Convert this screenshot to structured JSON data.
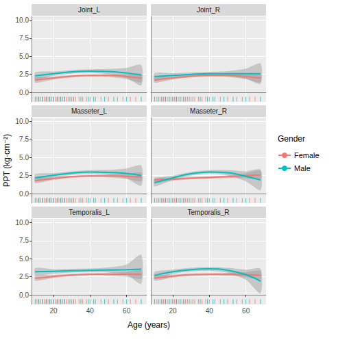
{
  "chart_data": {
    "type": "line",
    "x_label": "Age (years)",
    "y_label": "PPT (kg·cm⁻²)",
    "legend_title": "Gender",
    "legend": "right",
    "grid": true,
    "xlim": [
      8,
      71
    ],
    "ylim": [
      -1.3,
      10.5
    ],
    "xticks": [
      20,
      40,
      60
    ],
    "yticks": [
      {
        "value": 0,
        "label": "0.0"
      },
      2.5,
      {
        "value": 5,
        "label": "5.0"
      },
      7.5,
      {
        "value": 10,
        "label": "10.0"
      }
    ],
    "x": [
      10,
      20,
      30,
      40,
      50,
      60,
      68
    ],
    "rug": [
      {
        "name": "Female",
        "color": "#F8766D",
        "values": [
          11,
          12,
          13,
          14,
          15,
          16,
          17,
          18,
          19,
          20,
          21,
          22,
          23,
          24,
          25,
          26,
          27,
          28,
          30,
          32,
          34,
          36,
          38,
          40,
          43,
          46,
          50,
          55,
          58,
          62,
          65
        ]
      },
      {
        "name": "Male",
        "color": "#00BFC4",
        "values": [
          10,
          12,
          14,
          16,
          18,
          20,
          22,
          24,
          26,
          29,
          31,
          35,
          39,
          42,
          48,
          53,
          60,
          68
        ]
      }
    ],
    "panels": [
      {
        "title": "Joint_L",
        "series": [
          {
            "name": "Female",
            "color": "#F8766D",
            "values": [
              1.7,
              2.0,
              2.25,
              2.35,
              2.35,
              2.2,
              2.0
            ],
            "lower": [
              1.35,
              1.8,
              2.1,
              2.2,
              2.15,
              1.85,
              1.4
            ],
            "upper": [
              2.05,
              2.2,
              2.4,
              2.5,
              2.55,
              2.55,
              2.6
            ]
          },
          {
            "name": "Male",
            "color": "#00BFC4",
            "values": [
              2.3,
              2.6,
              2.85,
              2.95,
              2.9,
              2.7,
              2.4
            ],
            "lower": [
              1.8,
              2.3,
              2.6,
              2.7,
              2.55,
              2.0,
              1.0
            ],
            "upper": [
              2.8,
              2.9,
              3.1,
              3.2,
              3.25,
              3.4,
              3.8
            ]
          }
        ]
      },
      {
        "title": "Joint_R",
        "series": [
          {
            "name": "Female",
            "color": "#F8766D",
            "values": [
              1.7,
              2.0,
              2.25,
              2.35,
              2.35,
              2.2,
              2.0
            ],
            "lower": [
              1.35,
              1.8,
              2.1,
              2.2,
              2.15,
              1.85,
              1.4
            ],
            "upper": [
              2.05,
              2.2,
              2.4,
              2.5,
              2.55,
              2.55,
              2.6
            ]
          },
          {
            "name": "Male",
            "color": "#00BFC4",
            "values": [
              2.2,
              2.35,
              2.5,
              2.6,
              2.6,
              2.6,
              2.6
            ],
            "lower": [
              1.7,
              2.05,
              2.25,
              2.35,
              2.25,
              1.9,
              1.2
            ],
            "upper": [
              2.7,
              2.65,
              2.75,
              2.85,
              2.95,
              3.3,
              4.0
            ]
          }
        ]
      },
      {
        "title": "Masseter_L",
        "series": [
          {
            "name": "Female",
            "color": "#F8766D",
            "values": [
              1.8,
              2.1,
              2.35,
              2.45,
              2.45,
              2.4,
              2.3
            ],
            "lower": [
              1.45,
              1.9,
              2.2,
              2.3,
              2.25,
              2.05,
              1.7
            ],
            "upper": [
              2.15,
              2.3,
              2.5,
              2.6,
              2.65,
              2.75,
              2.9
            ]
          },
          {
            "name": "Male",
            "color": "#00BFC4",
            "values": [
              2.2,
              2.55,
              2.85,
              3.0,
              2.95,
              2.8,
              2.5
            ],
            "lower": [
              1.7,
              2.25,
              2.6,
              2.75,
              2.6,
              2.1,
              1.1
            ],
            "upper": [
              2.7,
              2.85,
              3.1,
              3.25,
              3.3,
              3.5,
              3.9
            ]
          }
        ]
      },
      {
        "title": "Masseter_R",
        "series": [
          {
            "name": "Female",
            "color": "#F8766D",
            "values": [
              1.9,
              2.0,
              2.15,
              2.25,
              2.35,
              2.5,
              2.6
            ],
            "lower": [
              1.55,
              1.8,
              2.0,
              2.1,
              2.15,
              2.15,
              2.0
            ],
            "upper": [
              2.25,
              2.2,
              2.3,
              2.4,
              2.55,
              2.85,
              3.2
            ]
          },
          {
            "name": "Male",
            "color": "#00BFC4",
            "values": [
              1.5,
              2.2,
              2.75,
              3.0,
              2.9,
              2.4,
              1.9
            ],
            "lower": [
              1.0,
              1.9,
              2.5,
              2.75,
              2.55,
              1.7,
              0.5
            ],
            "upper": [
              2.0,
              2.5,
              3.0,
              3.25,
              3.25,
              3.1,
              3.3
            ]
          }
        ]
      },
      {
        "title": "Temporalis_L",
        "series": [
          {
            "name": "Female",
            "color": "#F8766D",
            "values": [
              2.3,
              2.55,
              2.75,
              2.85,
              2.85,
              2.85,
              2.85
            ],
            "lower": [
              1.95,
              2.35,
              2.6,
              2.7,
              2.65,
              2.5,
              2.25
            ],
            "upper": [
              2.65,
              2.75,
              2.9,
              3.0,
              3.05,
              3.2,
              3.45
            ]
          },
          {
            "name": "Male",
            "color": "#00BFC4",
            "values": [
              3.2,
              3.25,
              3.35,
              3.4,
              3.45,
              3.5,
              3.55
            ],
            "lower": [
              2.7,
              2.95,
              3.1,
              3.15,
              3.1,
              2.8,
              1.55
            ],
            "upper": [
              3.7,
              3.55,
              3.6,
              3.65,
              3.8,
              4.2,
              5.55
            ]
          }
        ]
      },
      {
        "title": "Temporalis_R",
        "series": [
          {
            "name": "Female",
            "color": "#F8766D",
            "values": [
              2.3,
              2.6,
              2.8,
              2.85,
              2.85,
              2.8,
              2.7
            ],
            "lower": [
              1.95,
              2.4,
              2.65,
              2.7,
              2.65,
              2.45,
              2.1
            ],
            "upper": [
              2.65,
              2.8,
              2.95,
              3.0,
              3.05,
              3.15,
              3.3
            ]
          },
          {
            "name": "Male",
            "color": "#00BFC4",
            "values": [
              2.7,
              3.2,
              3.5,
              3.6,
              3.4,
              2.8,
              1.9
            ],
            "lower": [
              2.2,
              2.9,
              3.25,
              3.35,
              3.05,
              2.1,
              0.2
            ],
            "upper": [
              3.2,
              3.5,
              3.75,
              3.85,
              3.75,
              3.5,
              3.6
            ]
          }
        ]
      }
    ]
  }
}
